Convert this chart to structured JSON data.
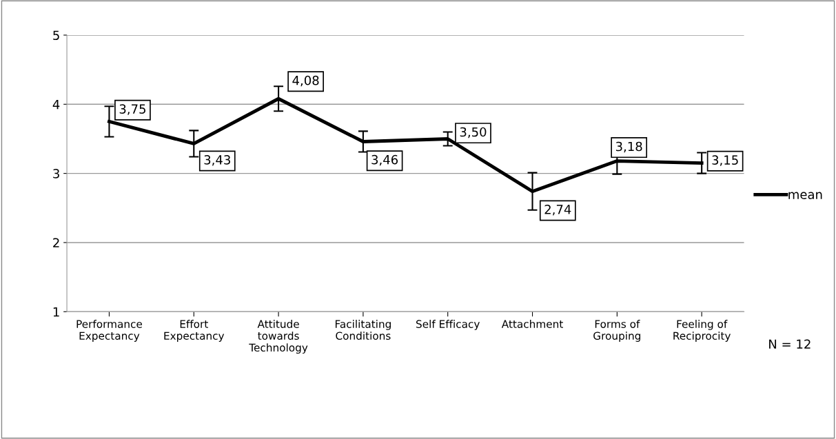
{
  "chart_data": {
    "type": "line",
    "categories": [
      "Performance\nExpectancy",
      "Effort\nExpectancy",
      "Attitude\ntowards\nTechnology",
      "Facilitating\nConditions",
      "Self Efficacy",
      "Attachment",
      "Forms of\nGrouping",
      "Feeling of\nReciprocity"
    ],
    "series": [
      {
        "name": "mean",
        "color": "#000000",
        "values": [
          3.75,
          3.43,
          4.08,
          3.46,
          3.5,
          2.74,
          3.18,
          3.15
        ],
        "errors": [
          0.22,
          0.19,
          0.18,
          0.15,
          0.1,
          0.27,
          0.19,
          0.15
        ],
        "value_labels": [
          "3,75",
          "3,43",
          "4,08",
          "3,46",
          "3,50",
          "2,74",
          "3,18",
          "3,15"
        ]
      }
    ],
    "ylim": [
      1,
      5
    ],
    "yticks": [
      1,
      2,
      3,
      4,
      5
    ],
    "grid": "y",
    "legend": "right",
    "marker": "none",
    "line_style": "solid",
    "annotations": [
      "N = 12"
    ]
  }
}
